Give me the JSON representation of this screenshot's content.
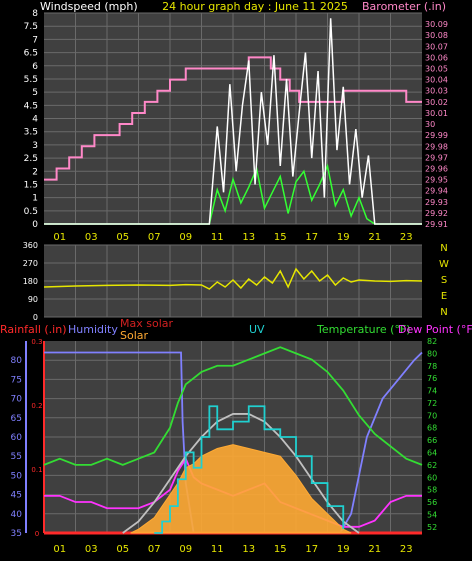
{
  "header": {
    "left": "Windspeed (mph)",
    "center": "24 hour graph day : June 11 2025",
    "right": "Barometer (.in)"
  },
  "colors": {
    "wind_avg": "#33ff33",
    "wind_gust": "#ffffff",
    "barometer": "#ff88c8",
    "direction": "#e6e600",
    "rain": "#ff2a2a",
    "humidity": "#8080ff",
    "max_solar": "#c0c0c0",
    "solar": "#ffaa33",
    "uv": "#20d0d0",
    "temperature": "#33dd33",
    "dew_point": "#ff33ff",
    "plot_bg": "#404040",
    "grid": "#6a6a6a"
  },
  "xaxis": {
    "hours": [
      "01",
      "03",
      "05",
      "07",
      "09",
      "11",
      "13",
      "15",
      "17",
      "19",
      "21",
      "23"
    ]
  },
  "chart_data": [
    {
      "type": "line",
      "name": "wind_and_barometer",
      "x_label_unit": "hour",
      "y_left": {
        "label": "Windspeed (mph)",
        "range": [
          0,
          8
        ],
        "ticks": [
          "0",
          "0.5",
          "1",
          "1.5",
          "2",
          "2.5",
          "3",
          "3.5",
          "4",
          "4.5",
          "5",
          "5.5",
          "6",
          "6.5",
          "7",
          "7.5",
          "8"
        ]
      },
      "y_right": {
        "label": "Barometer (.in)",
        "range": [
          29.91,
          30.1
        ],
        "ticks": [
          "29.91",
          "29.92",
          "29.93",
          "29.94",
          "29.95",
          "29.96",
          "29.97",
          "29.98",
          "29.99",
          "30",
          "30.01",
          "30.02",
          "30.03",
          "30.04",
          "30.05",
          "30.06",
          "30.07",
          "30.08",
          "30.09"
        ]
      },
      "series": [
        {
          "key": "barometer",
          "axis": "right",
          "x": [
            0,
            0.8,
            1.6,
            2.4,
            3.2,
            4.0,
            4.8,
            5.6,
            6.4,
            7.2,
            8.0,
            9.0,
            10.0,
            11.0,
            12.0,
            13.0,
            13.8,
            14.4,
            15.0,
            15.6,
            16.2,
            17.0,
            18.0,
            19.0,
            20.0,
            21.0,
            22.0,
            23.0,
            24.0
          ],
          "y": [
            29.95,
            29.96,
            29.97,
            29.98,
            29.99,
            29.99,
            30.0,
            30.01,
            30.02,
            30.03,
            30.04,
            30.05,
            30.05,
            30.05,
            30.05,
            30.06,
            30.06,
            30.05,
            30.04,
            30.03,
            30.02,
            30.02,
            30.02,
            30.03,
            30.03,
            30.03,
            30.03,
            30.02,
            30.02
          ]
        },
        {
          "key": "wind_avg",
          "axis": "left",
          "x": [
            0,
            10.5,
            11,
            11.5,
            12,
            12.5,
            13,
            13.5,
            14,
            14.5,
            15,
            15.5,
            16,
            16.5,
            17,
            17.5,
            18,
            18.5,
            19,
            19.5,
            20,
            20.5,
            21,
            24
          ],
          "y": [
            0,
            0,
            1.3,
            0.5,
            1.7,
            0.8,
            1.4,
            2.1,
            0.6,
            1.2,
            1.8,
            0.4,
            1.6,
            2.0,
            0.9,
            1.5,
            2.2,
            0.7,
            1.3,
            0.3,
            1.0,
            0.2,
            0,
            0
          ]
        },
        {
          "key": "wind_gust",
          "axis": "left",
          "x": [
            0,
            10.5,
            11,
            11.4,
            11.8,
            12.2,
            12.6,
            13,
            13.4,
            13.8,
            14.2,
            14.6,
            15,
            15.4,
            15.8,
            16.2,
            16.6,
            17,
            17.4,
            17.8,
            18.2,
            18.6,
            19,
            19.4,
            19.8,
            20.2,
            20.6,
            21,
            24
          ],
          "y": [
            0,
            0,
            3.7,
            1.2,
            5.3,
            2.0,
            4.5,
            6.2,
            1.5,
            5.0,
            3.0,
            6.4,
            2.2,
            5.5,
            1.8,
            4.2,
            6.5,
            2.5,
            5.8,
            1.0,
            7.8,
            2.8,
            5.2,
            1.5,
            3.6,
            1.0,
            2.6,
            0,
            0
          ]
        }
      ]
    },
    {
      "type": "line",
      "name": "wind_direction",
      "y_range": [
        0,
        360
      ],
      "ticks": [
        "360",
        "270",
        "180",
        "90",
        "0"
      ],
      "compass": [
        "N",
        "W",
        "S",
        "E",
        "N"
      ],
      "series": [
        {
          "key": "direction",
          "x": [
            0,
            2,
            4,
            6,
            8,
            9,
            10,
            10.5,
            11,
            11.5,
            12,
            12.5,
            13,
            13.5,
            14,
            14.5,
            15,
            15.5,
            16,
            16.5,
            17,
            17.5,
            18,
            18.5,
            19,
            19.5,
            20,
            21,
            22,
            23,
            24
          ],
          "y": [
            150,
            155,
            158,
            160,
            158,
            162,
            160,
            140,
            175,
            150,
            185,
            145,
            190,
            160,
            200,
            170,
            230,
            150,
            240,
            190,
            230,
            180,
            210,
            160,
            195,
            175,
            185,
            180,
            178,
            182,
            180
          ]
        }
      ]
    },
    {
      "type": "line",
      "name": "rain_humidity_solar_temperature",
      "y_humidity": {
        "label": "Humidity",
        "range": [
          35,
          85
        ],
        "ticks": [
          "35",
          "40",
          "45",
          "50",
          "55",
          "60",
          "65",
          "70",
          "75",
          "80"
        ]
      },
      "y_rain": {
        "label": "Rainfall (.in)",
        "range": [
          0,
          0.3
        ],
        "ticks": [
          "0",
          "0.1",
          "0.2",
          "0.3"
        ]
      },
      "y_temp": {
        "label": "Temperature (°F)",
        "range": [
          51,
          82
        ],
        "ticks": [
          "52",
          "54",
          "56",
          "58",
          "60",
          "62",
          "64",
          "66",
          "68",
          "70",
          "72",
          "74",
          "76",
          "78",
          "80",
          "82"
        ]
      },
      "legend": [
        "Rainfall (.in)",
        "Humidity",
        "Max solar",
        "Solar",
        "UV",
        "Temperature (°F)",
        "Dew Point (°F)"
      ],
      "series": [
        {
          "key": "humidity",
          "axis": "humidity",
          "x": [
            0,
            8.7,
            8.8,
            9.0,
            9.5,
            10,
            12,
            14,
            16,
            18,
            18.8,
            19.5,
            20.5,
            21.5,
            22.5,
            23.5,
            24
          ],
          "y": [
            82,
            82,
            64,
            48,
            35,
            35,
            35,
            35,
            35,
            35,
            35,
            40,
            60,
            70,
            75,
            80,
            82
          ]
        },
        {
          "key": "temperature",
          "axis": "temp",
          "x": [
            0,
            1,
            2,
            3,
            4,
            5,
            6,
            7,
            7.5,
            8,
            8.5,
            9,
            9.5,
            10,
            11,
            12,
            13,
            14,
            15,
            16,
            17,
            18,
            19,
            20,
            21,
            22,
            23,
            24
          ],
          "y": [
            62,
            63,
            62,
            62,
            63,
            62,
            63,
            64,
            66,
            68,
            72,
            75,
            76,
            77,
            78,
            78,
            79,
            80,
            81,
            80,
            79,
            77,
            74,
            70,
            67,
            65,
            63,
            62
          ]
        },
        {
          "key": "dew_point",
          "axis": "temp",
          "x": [
            0,
            1,
            2,
            3,
            4,
            5,
            6,
            7,
            8,
            8.5,
            9,
            9.5,
            10,
            11,
            12,
            13,
            14,
            15,
            16,
            17,
            18,
            19,
            20,
            21,
            22,
            23,
            24
          ],
          "y": [
            57,
            57,
            56,
            56,
            55,
            55,
            55,
            56,
            58,
            61,
            63,
            60,
            59,
            58,
            57,
            58,
            59,
            56,
            55,
            54,
            53,
            52,
            52,
            53,
            56,
            57,
            57
          ]
        },
        {
          "key": "rain",
          "axis": "rain",
          "x": [
            0,
            24
          ],
          "y": [
            0,
            0
          ]
        },
        {
          "key": "max_solar",
          "axis": "humidity",
          "x": [
            5,
            6,
            7,
            8,
            9,
            10,
            11,
            12,
            13,
            14,
            15,
            16,
            17,
            18,
            19,
            20
          ],
          "y": [
            35,
            38,
            43,
            49,
            55,
            60,
            64,
            66,
            66,
            64,
            60,
            55,
            49,
            43,
            38,
            35
          ]
        },
        {
          "key": "solar",
          "axis": "humidity",
          "x": [
            5.5,
            6,
            7,
            8,
            8.5,
            9,
            9.5,
            10,
            11,
            12,
            13,
            14,
            15,
            16,
            17,
            18,
            19,
            19.5
          ],
          "y": [
            35,
            36,
            39,
            45,
            48,
            52,
            53,
            55,
            57,
            58,
            57,
            56,
            55,
            50,
            44,
            40,
            36,
            35
          ]
        },
        {
          "key": "uv",
          "axis": "humidity",
          "x": [
            7,
            7.5,
            8,
            8.5,
            9,
            9.5,
            10,
            10.5,
            11,
            12,
            13,
            14,
            15,
            16,
            17,
            18,
            19
          ],
          "y": [
            35,
            38,
            42,
            49,
            56,
            52,
            60,
            68,
            62,
            64,
            68,
            62,
            60,
            55,
            48,
            42,
            36
          ]
        }
      ]
    }
  ]
}
